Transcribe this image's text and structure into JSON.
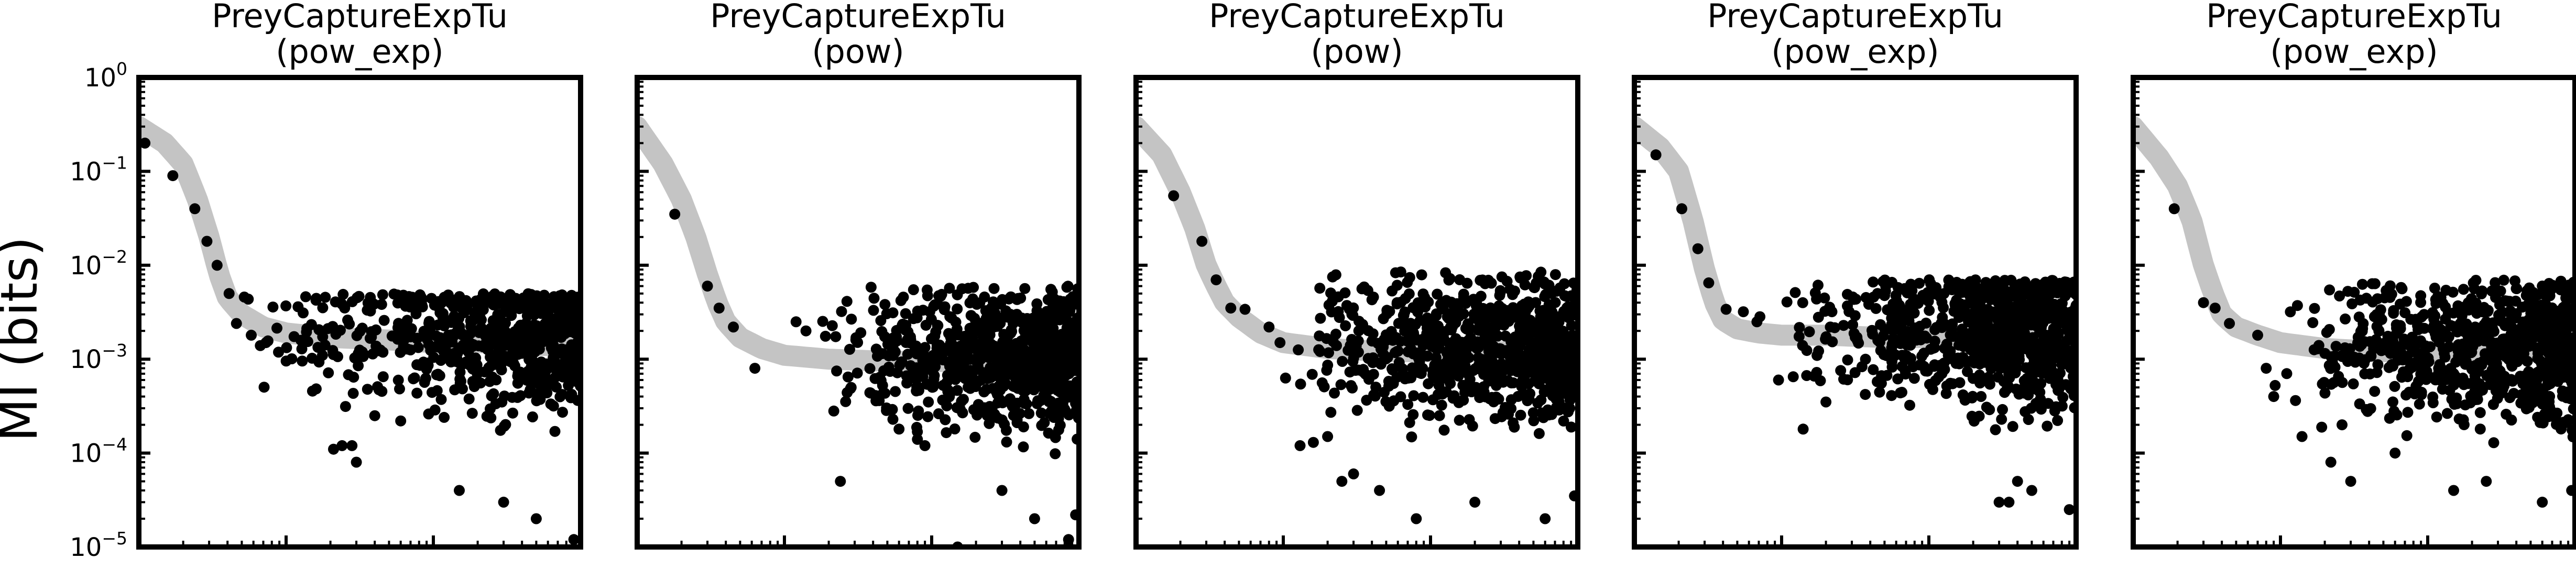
{
  "figure": {
    "ylabel": "MI (bits)"
  },
  "chart_data": [
    {
      "type": "scatter",
      "title_line1": "PreyCaptureExpTu",
      "title_line2": "(pow_exp)",
      "ylabel": "MI (bits)",
      "yscale": "log",
      "ylim": [
        1e-05,
        1
      ],
      "yticks": [
        {
          "base": "10",
          "exp": "0",
          "value": 1
        },
        {
          "base": "10",
          "exp": "−1",
          "value": 0.1
        },
        {
          "base": "10",
          "exp": "−2",
          "value": 0.01
        },
        {
          "base": "10",
          "exp": "−3",
          "value": 0.001
        },
        {
          "base": "10",
          "exp": "−4",
          "value": 0.0001
        },
        {
          "base": "10",
          "exp": "−5",
          "value": 1e-05
        }
      ],
      "xscale": "log",
      "xlim": [
        1,
        1000
      ],
      "x_tick_labels": "none",
      "fit_color": "#c4c4c4",
      "point_color": "#000000",
      "fit_curve": [
        [
          1,
          0.3
        ],
        [
          1.5,
          0.2
        ],
        [
          2,
          0.12
        ],
        [
          2.5,
          0.05
        ],
        [
          3,
          0.02
        ],
        [
          3.5,
          0.008
        ],
        [
          4,
          0.0045
        ],
        [
          5,
          0.003
        ],
        [
          7,
          0.0022
        ],
        [
          10,
          0.0019
        ],
        [
          20,
          0.0017
        ],
        [
          50,
          0.0016
        ],
        [
          100,
          0.0015
        ],
        [
          200,
          0.0015
        ],
        [
          500,
          0.0014
        ],
        [
          1000,
          0.0014
        ]
      ],
      "highlight_points": [
        [
          1.1,
          0.2
        ],
        [
          1.7,
          0.09
        ],
        [
          2.4,
          0.04
        ],
        [
          2.9,
          0.018
        ],
        [
          3.4,
          0.01
        ],
        [
          4.1,
          0.005
        ],
        [
          4.6,
          0.0024
        ],
        [
          5.8,
          0.0018
        ],
        [
          7.3,
          0.0015
        ]
      ],
      "cloud": {
        "xmin": 4.5,
        "xmax": 1000,
        "ymax_floor": 0.005,
        "ymin_floor": 8e-05,
        "count": 650,
        "seed": 11
      },
      "outliers": [
        [
          21,
          0.00011
        ],
        [
          24,
          0.00012
        ],
        [
          28,
          0.00012
        ],
        [
          30,
          8e-05
        ],
        [
          40,
          0.00025
        ],
        [
          60,
          0.00022
        ],
        [
          150,
          4e-05
        ],
        [
          300,
          3e-05
        ],
        [
          500,
          2e-05
        ],
        [
          900,
          1.2e-05
        ]
      ]
    },
    {
      "type": "scatter",
      "title_line1": "PreyCaptureExpTu",
      "title_line2": "(pow)",
      "yscale": "log",
      "ylim": [
        1e-05,
        1
      ],
      "xscale": "log",
      "xlim": [
        1,
        1000
      ],
      "fit_color": "#c4c4c4",
      "point_color": "#000000",
      "fit_curve": [
        [
          1,
          0.3
        ],
        [
          1.5,
          0.12
        ],
        [
          2,
          0.05
        ],
        [
          2.5,
          0.02
        ],
        [
          3,
          0.008
        ],
        [
          3.5,
          0.004
        ],
        [
          4,
          0.0025
        ],
        [
          5,
          0.0017
        ],
        [
          7,
          0.0013
        ],
        [
          10,
          0.0011
        ],
        [
          20,
          0.001
        ],
        [
          50,
          0.00095
        ],
        [
          100,
          0.00095
        ],
        [
          300,
          0.0009
        ],
        [
          1000,
          0.0009
        ]
      ],
      "highlight_points": [
        [
          1.8,
          0.035
        ],
        [
          3,
          0.006
        ],
        [
          3.6,
          0.0035
        ],
        [
          4.5,
          0.0022
        ],
        [
          6.3,
          0.0008
        ],
        [
          12,
          0.0025
        ],
        [
          14,
          0.002
        ]
      ],
      "cloud": {
        "xmin": 15,
        "xmax": 1000,
        "ymax_floor": 0.006,
        "ymin_floor": 9e-05,
        "count": 700,
        "seed": 23
      },
      "outliers": [
        [
          24,
          5e-05
        ],
        [
          60,
          0.00018
        ],
        [
          80,
          0.00014
        ],
        [
          90,
          0.00012
        ],
        [
          150,
          1e-05
        ],
        [
          300,
          4e-05
        ],
        [
          500,
          2e-05
        ],
        [
          850,
          1.2e-05
        ],
        [
          950,
          2.2e-05
        ]
      ]
    },
    {
      "type": "scatter",
      "title_line1": "PreyCaptureExpTu",
      "title_line2": "(pow)",
      "yscale": "log",
      "ylim": [
        1e-05,
        1
      ],
      "xscale": "log",
      "xlim": [
        1,
        1000
      ],
      "fit_color": "#c4c4c4",
      "point_color": "#000000",
      "fit_curve": [
        [
          1,
          0.3
        ],
        [
          1.5,
          0.15
        ],
        [
          2,
          0.06
        ],
        [
          2.5,
          0.025
        ],
        [
          3,
          0.01
        ],
        [
          3.5,
          0.006
        ],
        [
          4,
          0.004
        ],
        [
          5,
          0.0028
        ],
        [
          7,
          0.0019
        ],
        [
          10,
          0.0015
        ],
        [
          20,
          0.0013
        ],
        [
          50,
          0.0012
        ],
        [
          100,
          0.0012
        ],
        [
          300,
          0.0012
        ],
        [
          1000,
          0.0012
        ]
      ],
      "highlight_points": [
        [
          1.8,
          0.055
        ],
        [
          2.8,
          0.018
        ],
        [
          3.5,
          0.007
        ],
        [
          4.4,
          0.0035
        ],
        [
          5.5,
          0.0034
        ],
        [
          8,
          0.0022
        ],
        [
          9.5,
          0.0015
        ]
      ],
      "cloud": {
        "xmin": 9,
        "xmax": 1000,
        "ymax_floor": 0.009,
        "ymin_floor": 6e-05,
        "count": 750,
        "seed": 37
      },
      "outliers": [
        [
          13,
          0.00012
        ],
        [
          16,
          0.00013
        ],
        [
          20,
          0.00015
        ],
        [
          25,
          5e-05
        ],
        [
          30,
          6e-05
        ],
        [
          45,
          4e-05
        ],
        [
          80,
          2e-05
        ],
        [
          200,
          3e-05
        ],
        [
          600,
          2e-05
        ],
        [
          950,
          3.5e-05
        ]
      ]
    },
    {
      "type": "scatter",
      "title_line1": "PreyCaptureExpTu",
      "title_line2": "(pow_exp)",
      "yscale": "log",
      "ylim": [
        1e-05,
        1
      ],
      "xscale": "log",
      "xlim": [
        1,
        1000
      ],
      "fit_color": "#c4c4c4",
      "point_color": "#000000",
      "fit_curve": [
        [
          1,
          0.3
        ],
        [
          1.5,
          0.18
        ],
        [
          2,
          0.1
        ],
        [
          2.5,
          0.03
        ],
        [
          3,
          0.009
        ],
        [
          3.5,
          0.004
        ],
        [
          4,
          0.0026
        ],
        [
          5,
          0.0021
        ],
        [
          7,
          0.0019
        ],
        [
          10,
          0.0018
        ],
        [
          20,
          0.0018
        ],
        [
          50,
          0.0017
        ],
        [
          100,
          0.0017
        ],
        [
          300,
          0.0016
        ],
        [
          1000,
          0.0016
        ]
      ],
      "highlight_points": [
        [
          1.4,
          0.15
        ],
        [
          2.1,
          0.04
        ],
        [
          2.7,
          0.015
        ],
        [
          3.2,
          0.0065
        ],
        [
          4.2,
          0.0034
        ],
        [
          5.5,
          0.0032
        ],
        [
          6.8,
          0.0025
        ]
      ],
      "cloud": {
        "xmin": 7,
        "xmax": 1000,
        "ymax_floor": 0.007,
        "ymin_floor": 8e-05,
        "count": 750,
        "seed": 51
      },
      "outliers": [
        [
          12,
          0.00065
        ],
        [
          14,
          0.00018
        ],
        [
          20,
          0.00035
        ],
        [
          300,
          3e-05
        ],
        [
          350,
          3e-05
        ],
        [
          400,
          5e-05
        ],
        [
          500,
          4e-05
        ],
        [
          900,
          2.5e-05
        ]
      ]
    },
    {
      "type": "scatter",
      "title_line1": "PreyCaptureExpTu",
      "title_line2": "(pow_exp)",
      "yscale": "log",
      "ylim": [
        1e-05,
        1
      ],
      "xscale": "log",
      "xlim": [
        1,
        1000
      ],
      "fit_color": "#c4c4c4",
      "point_color": "#000000",
      "fit_curve": [
        [
          1,
          0.3
        ],
        [
          1.5,
          0.14
        ],
        [
          2,
          0.07
        ],
        [
          2.5,
          0.03
        ],
        [
          3,
          0.01
        ],
        [
          3.5,
          0.005
        ],
        [
          4,
          0.003
        ],
        [
          5,
          0.0022
        ],
        [
          7,
          0.0018
        ],
        [
          10,
          0.0015
        ],
        [
          20,
          0.0013
        ],
        [
          50,
          0.0012
        ],
        [
          100,
          0.0012
        ],
        [
          300,
          0.0012
        ],
        [
          1000,
          0.0012
        ]
      ],
      "highlight_points": [
        [
          1.9,
          0.04
        ],
        [
          3,
          0.004
        ],
        [
          3.6,
          0.0035
        ],
        [
          4.5,
          0.0024
        ],
        [
          7,
          0.0018
        ],
        [
          8,
          0.0008
        ],
        [
          9,
          0.0004
        ]
      ],
      "cloud": {
        "xmin": 9,
        "xmax": 1000,
        "ymax_floor": 0.007,
        "ymin_floor": 6e-05,
        "count": 750,
        "seed": 67
      },
      "outliers": [
        [
          14,
          0.00015
        ],
        [
          22,
          8e-05
        ],
        [
          30,
          5e-05
        ],
        [
          60,
          0.0001
        ],
        [
          150,
          4e-05
        ],
        [
          250,
          5e-05
        ],
        [
          600,
          3e-05
        ],
        [
          950,
          4e-05
        ]
      ]
    }
  ]
}
